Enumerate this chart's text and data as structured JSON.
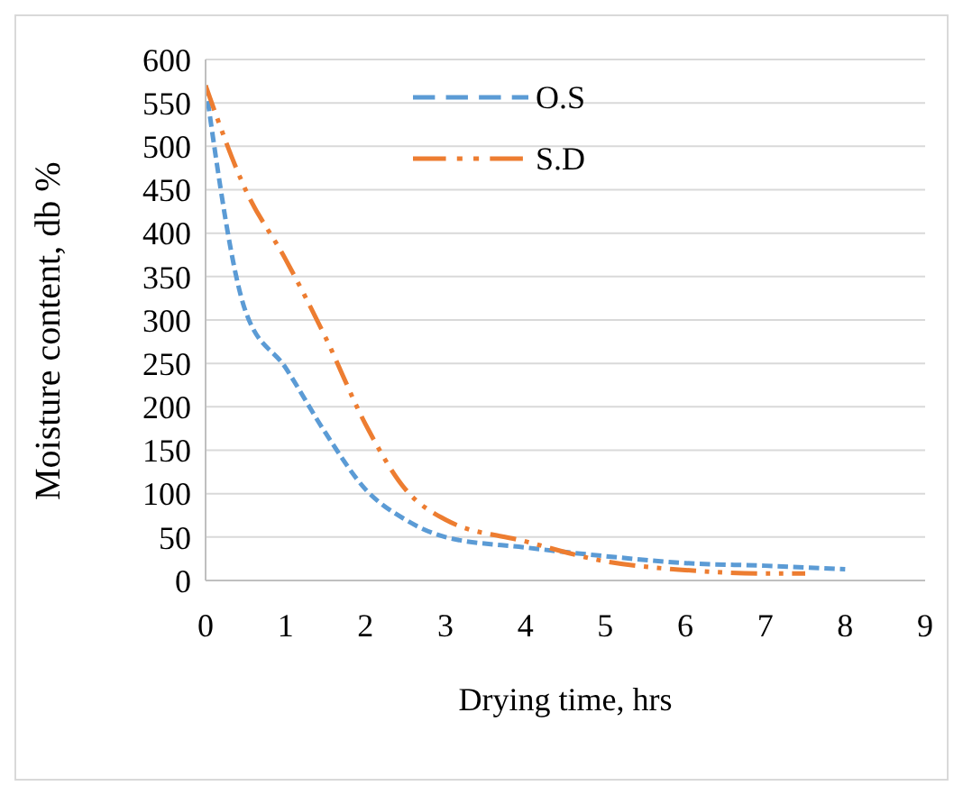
{
  "chart_data": {
    "type": "line",
    "xlabel": "Drying time, hrs",
    "ylabel": "Moisture content, db %",
    "xlim": [
      0,
      9
    ],
    "xticks": [
      0,
      1,
      2,
      3,
      4,
      5,
      6,
      7,
      8,
      9
    ],
    "ylim": [
      0,
      600
    ],
    "yticks": [
      0,
      50,
      100,
      150,
      200,
      250,
      300,
      350,
      400,
      450,
      500,
      550,
      600
    ],
    "grid": "y",
    "legend": "top",
    "marker": "none",
    "series": [
      {
        "name": "O.S",
        "color": "#5b9bd5",
        "line_style": "dashed",
        "x": [
          0,
          0.5,
          1,
          1.5,
          2,
          2.5,
          3,
          4,
          5,
          6,
          7,
          8
        ],
        "values": [
          570,
          310,
          245,
          170,
          105,
          70,
          50,
          38,
          28,
          20,
          17,
          13
        ]
      },
      {
        "name": "S.D",
        "color": "#ed7d31",
        "line_style": "dashdot",
        "x": [
          0,
          0.5,
          1,
          1.5,
          2,
          2.5,
          3,
          4,
          5,
          6,
          7,
          7.5
        ],
        "values": [
          570,
          450,
          370,
          280,
          180,
          105,
          70,
          45,
          22,
          12,
          8,
          8
        ]
      }
    ]
  }
}
